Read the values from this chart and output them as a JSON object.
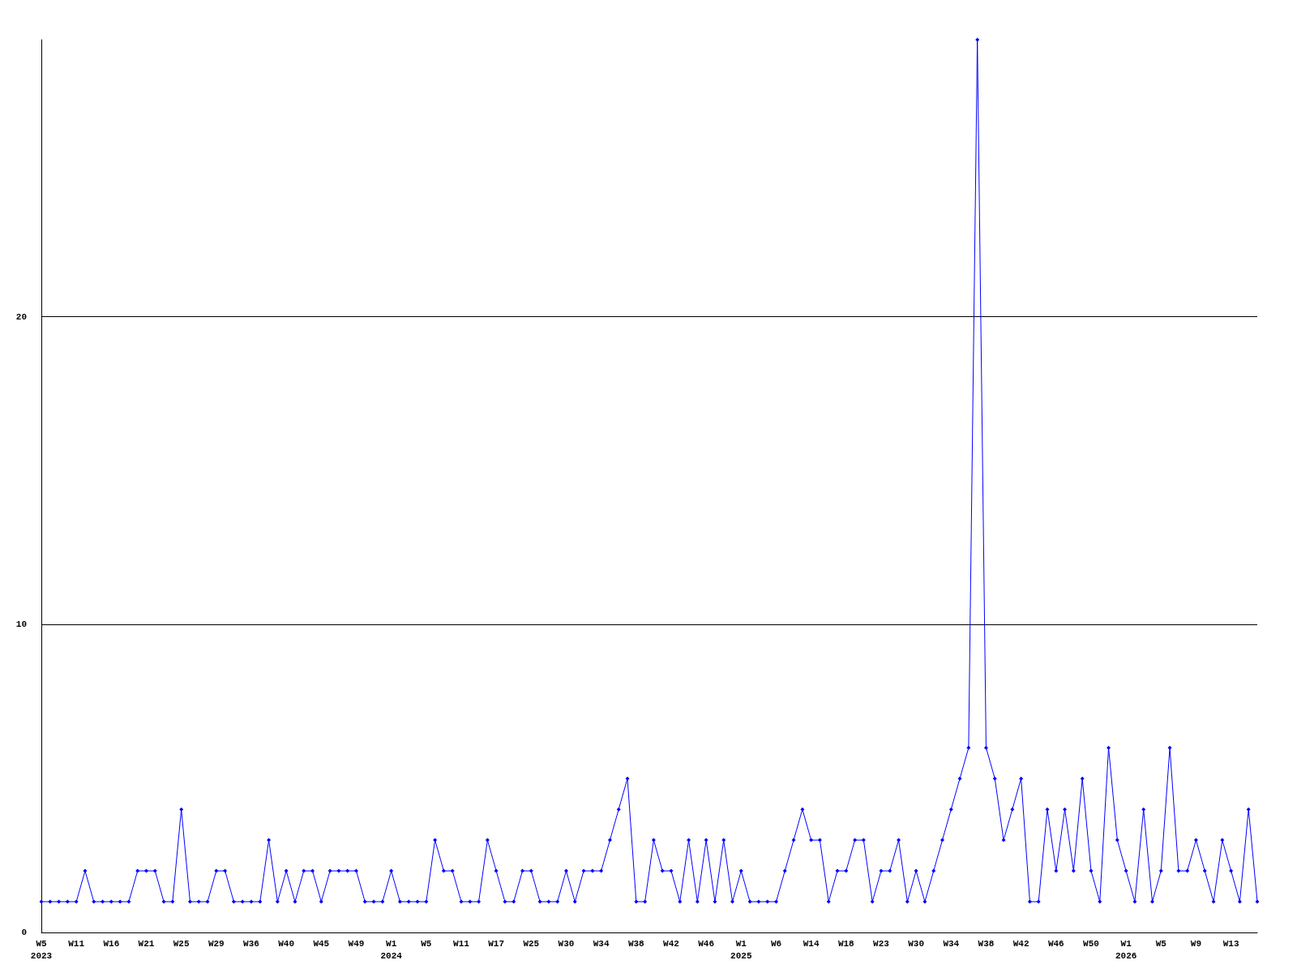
{
  "chart_data": {
    "type": "line",
    "categories": [
      "W5\n2023",
      null,
      null,
      null,
      "W11",
      null,
      null,
      null,
      "W16",
      null,
      null,
      null,
      "W21",
      null,
      null,
      null,
      "W25",
      null,
      null,
      null,
      "W29",
      null,
      null,
      null,
      "W36",
      null,
      null,
      null,
      "W40",
      null,
      null,
      null,
      "W45",
      null,
      null,
      null,
      "W49",
      null,
      null,
      null,
      "W1\n2024",
      null,
      null,
      null,
      "W5",
      null,
      null,
      null,
      "W11",
      null,
      null,
      null,
      "W17",
      null,
      null,
      null,
      "W25",
      null,
      null,
      null,
      "W30",
      null,
      null,
      null,
      "W34",
      null,
      null,
      null,
      "W38",
      null,
      null,
      null,
      "W42",
      null,
      null,
      null,
      "W46",
      null,
      null,
      null,
      "W1\n2025",
      null,
      null,
      null,
      "W6",
      null,
      null,
      null,
      "W14",
      null,
      null,
      null,
      "W18",
      null,
      null,
      null,
      "W23",
      null,
      null,
      null,
      "W30",
      null,
      null,
      null,
      "W34",
      null,
      null,
      null,
      "W38",
      null,
      null,
      null,
      "W42",
      null,
      null,
      null,
      "W46",
      null,
      null,
      null,
      "W50",
      null,
      null,
      null,
      "W1\n2026",
      null,
      null,
      null,
      "W5",
      null,
      null,
      null,
      "W9",
      null,
      null,
      null,
      "W13",
      null,
      null,
      null
    ],
    "series": [
      {
        "color": "#0000ff",
        "values": [
          1,
          1,
          1,
          1,
          1,
          2,
          1,
          1,
          1,
          1,
          1,
          2,
          2,
          2,
          1,
          1,
          4,
          1,
          1,
          1,
          2,
          2,
          1,
          1,
          1,
          1,
          3,
          1,
          2,
          1,
          2,
          2,
          1,
          2,
          2,
          2,
          2,
          1,
          1,
          1,
          2,
          1,
          1,
          1,
          1,
          3,
          2,
          2,
          1,
          1,
          1,
          3,
          2,
          1,
          1,
          2,
          2,
          1,
          1,
          1,
          2,
          1,
          2,
          2,
          2,
          3,
          4,
          5,
          1,
          1,
          3,
          2,
          2,
          1,
          3,
          1,
          3,
          1,
          3,
          1,
          2,
          1,
          1,
          1,
          1,
          2,
          3,
          4,
          3,
          3,
          1,
          2,
          2,
          3,
          3,
          1,
          2,
          2,
          3,
          1,
          2,
          1,
          2,
          3,
          4,
          5,
          6,
          29,
          6,
          5,
          3,
          4,
          5,
          1,
          1,
          4,
          2,
          4,
          2,
          5,
          2,
          1,
          6,
          3,
          2,
          1,
          4,
          1,
          2,
          6,
          2,
          2,
          3,
          2,
          1,
          3,
          2,
          1,
          4,
          1
        ]
      }
    ],
    "ylim": [
      0,
      29
    ],
    "yticks": [
      0,
      10,
      20
    ],
    "grid": "y",
    "marker": "diamond",
    "line_style": "solid"
  }
}
